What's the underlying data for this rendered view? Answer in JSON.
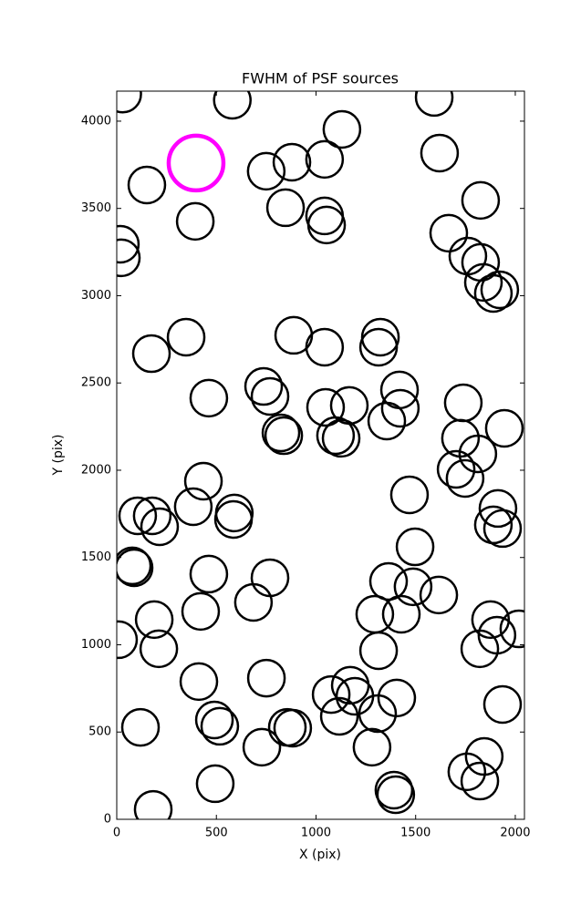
{
  "chart_data": {
    "type": "scatter",
    "title": "FWHM of PSF sources",
    "x_label": "X (pix)",
    "y_label": "Y (pix)",
    "xlim": [
      0,
      2046
    ],
    "ylim": [
      0,
      4172
    ],
    "xticks": [
      0,
      500,
      1000,
      1500,
      2000
    ],
    "yticks": [
      0,
      500,
      1000,
      1500,
      2000,
      2500,
      3000,
      3500,
      4000
    ],
    "marker": "open-circle",
    "series": [
      {
        "color": "#000000",
        "x": [
          30,
          580,
          151,
          394,
          18,
          23,
          750,
          879,
          1043,
          1130,
          847,
          1043,
          1053,
          1620,
          1593,
          1826,
          1666,
          1762,
          1826,
          1840,
          1890,
          1922,
          348,
          174,
          888,
          1043,
          1323,
          1314,
          737,
          769,
          462,
          1419,
          1423,
          1048,
          1167,
          1739,
          1945,
          824,
          838,
          1098,
          1126,
          1355,
          1725,
          1812,
          1703,
          1748,
          435,
          1469,
          105,
          178,
          384,
          590,
          586,
          215,
          1913,
          1890,
          1936,
          78,
          87,
          462,
          769,
          1497,
          1364,
          1487,
          1616,
          188,
          421,
          686,
          1295,
          1428,
          1876,
          1908,
          2018,
          9,
          211,
          1822,
          1314,
          412,
          751,
          1076,
          1172,
          1195,
          1405,
          1117,
          1309,
          119,
          490,
          517,
          856,
          883,
          1936,
          728,
          1281,
          1844,
          1757,
          1822,
          494,
          1391,
          1400,
          183
        ],
        "y": [
          4155,
          4120,
          3634,
          3426,
          3295,
          3217,
          3713,
          3765,
          3781,
          3953,
          3504,
          3457,
          3405,
          3817,
          4136,
          3546,
          3358,
          3227,
          3191,
          3076,
          3013,
          3034,
          2762,
          2668,
          2773,
          2705,
          2762,
          2705,
          2480,
          2423,
          2413,
          2460,
          2355,
          2360,
          2371,
          2386,
          2240,
          2214,
          2198,
          2198,
          2183,
          2282,
          2183,
          2094,
          2005,
          1953,
          1937,
          1859,
          1739,
          1739,
          1791,
          1755,
          1718,
          1676,
          1781,
          1687,
          1666,
          1452,
          1441,
          1405,
          1384,
          1561,
          1363,
          1332,
          1285,
          1144,
          1191,
          1243,
          1175,
          1175,
          1144,
          1055,
          1091,
          1029,
          977,
          977,
          966,
          789,
          809,
          715,
          768,
          705,
          695,
          590,
          606,
          527,
          569,
          533,
          527,
          522,
          658,
          413,
          413,
          360,
          272,
          219,
          204,
          167,
          141,
          57
        ]
      },
      {
        "color": "#ff00ff",
        "x": [
          398
        ],
        "y": [
          3760
        ]
      }
    ]
  }
}
